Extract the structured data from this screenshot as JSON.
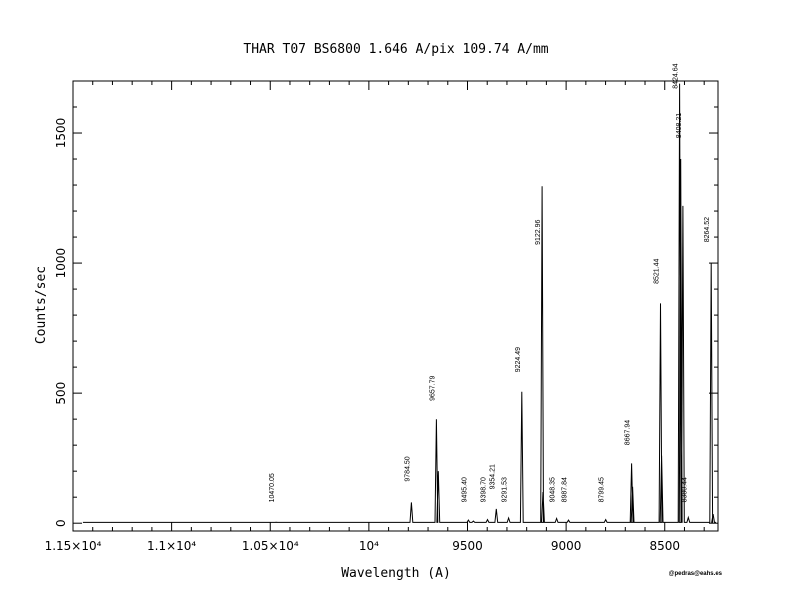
{
  "chart_data": {
    "type": "line",
    "title": "THAR  T07  BS6800  1.646 A/pix  109.74 A/mm",
    "xlabel": "Wavelength (A)",
    "ylabel": "Counts/sec",
    "credit": "@pedras@eahs.es",
    "xlim": [
      11500,
      8230
    ],
    "ylim": [
      -30,
      1700
    ],
    "x_ticks": [
      {
        "value": 11500,
        "label": "1.15×10⁴"
      },
      {
        "value": 11000,
        "label": "1.1×10⁴"
      },
      {
        "value": 10500,
        "label": "1.05×10⁴"
      },
      {
        "value": 10000,
        "label": "10⁴"
      },
      {
        "value": 9500,
        "label": "9500"
      },
      {
        "value": 9000,
        "label": "9000"
      },
      {
        "value": 8500,
        "label": "8500"
      }
    ],
    "x_minor_step": 100,
    "y_ticks": [
      {
        "value": 0,
        "label": "0"
      },
      {
        "value": 500,
        "label": "500"
      },
      {
        "value": 1000,
        "label": "1000"
      },
      {
        "value": 1500,
        "label": "1500"
      }
    ],
    "y_minor_step": 100,
    "baseline": 3,
    "peaks": [
      {
        "x": 10470,
        "y": 4
      },
      {
        "x": 9784.5,
        "y": 80
      },
      {
        "x": 9657.8,
        "y": 400
      },
      {
        "x": 9648,
        "y": 200
      },
      {
        "x": 9495.5,
        "y": 12
      },
      {
        "x": 9470,
        "y": 8
      },
      {
        "x": 9398.7,
        "y": 14
      },
      {
        "x": 9354.2,
        "y": 55
      },
      {
        "x": 9291.5,
        "y": 20
      },
      {
        "x": 9224.5,
        "y": 505
      },
      {
        "x": 9122,
        "y": 1295
      },
      {
        "x": 9117,
        "y": 120
      },
      {
        "x": 9048.3,
        "y": 18
      },
      {
        "x": 8987.8,
        "y": 12
      },
      {
        "x": 8799.5,
        "y": 14
      },
      {
        "x": 8668,
        "y": 230
      },
      {
        "x": 8663,
        "y": 140
      },
      {
        "x": 8521.4,
        "y": 845
      },
      {
        "x": 8516,
        "y": 260
      },
      {
        "x": 8424.6,
        "y": 1690
      },
      {
        "x": 8419,
        "y": 1400
      },
      {
        "x": 8408.2,
        "y": 1220
      },
      {
        "x": 8380.4,
        "y": 22
      },
      {
        "x": 8264.5,
        "y": 1000
      },
      {
        "x": 8255,
        "y": 35
      }
    ],
    "annotations": [
      {
        "label": "10470.05",
        "x": 10470,
        "y": 80
      },
      {
        "label": "9784.50",
        "x": 9784.5,
        "y": 160
      },
      {
        "label": "9657.79",
        "x": 9657.8,
        "y": 470
      },
      {
        "label": "9495.40",
        "x": 9495.5,
        "y": 80
      },
      {
        "label": "9398.70",
        "x": 9398.7,
        "y": 80
      },
      {
        "label": "9354.21",
        "x": 9354.2,
        "y": 130
      },
      {
        "label": "9291.53",
        "x": 9291.5,
        "y": 80
      },
      {
        "label": "9224.49",
        "x": 9224.5,
        "y": 580
      },
      {
        "label": "9122.96",
        "x": 9122,
        "y": 1070
      },
      {
        "label": "9048.35",
        "x": 9048.3,
        "y": 80
      },
      {
        "label": "8987.84",
        "x": 8987.8,
        "y": 80
      },
      {
        "label": "8799.45",
        "x": 8799.5,
        "y": 80
      },
      {
        "label": "8667.94",
        "x": 8667.9,
        "y": 300
      },
      {
        "label": "8521.44",
        "x": 8521.4,
        "y": 920
      },
      {
        "label": "8424.64",
        "x": 8424.6,
        "y": 1670
      },
      {
        "label": "8408.21",
        "x": 8408.2,
        "y": 1480
      },
      {
        "label": "8380.44",
        "x": 8380.4,
        "y": 80
      },
      {
        "label": "8264.52",
        "x": 8264.5,
        "y": 1080
      }
    ]
  }
}
